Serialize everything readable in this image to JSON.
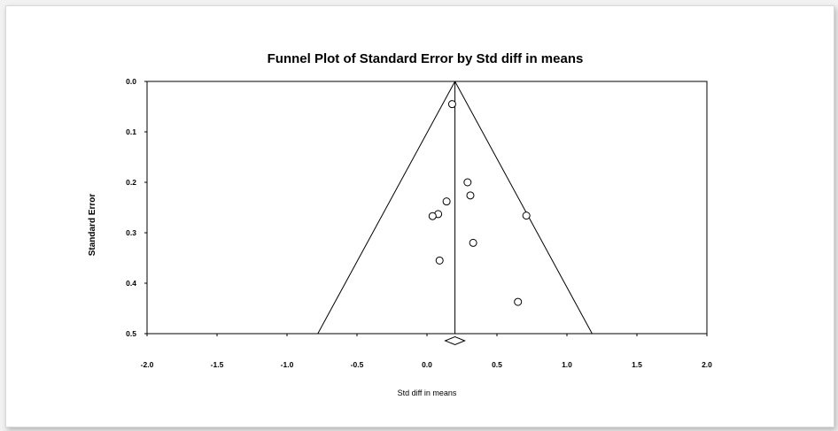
{
  "chart_data": {
    "type": "scatter",
    "title": "Funnel Plot of Standard Error by Std diff in means",
    "xlabel": "Std diff in means",
    "ylabel": "Standard Error",
    "xlim": [
      -2.0,
      2.0
    ],
    "ylim": [
      0.0,
      0.5
    ],
    "y_inverted": true,
    "x_ticks": [
      "-2.0",
      "-1.5",
      "-1.0",
      "-0.5",
      "0.0",
      "0.5",
      "1.0",
      "1.5",
      "2.0"
    ],
    "y_ticks": [
      "0.0",
      "0.1",
      "0.2",
      "0.3",
      "0.4",
      "0.5"
    ],
    "grid": false,
    "legend": "none",
    "summary_effect": 0.2,
    "funnel_limits": [
      -0.78,
      1.18
    ],
    "points": [
      {
        "x": 0.18,
        "y": 0.045
      },
      {
        "x": 0.29,
        "y": 0.2
      },
      {
        "x": 0.31,
        "y": 0.226
      },
      {
        "x": 0.14,
        "y": 0.238
      },
      {
        "x": 0.08,
        "y": 0.263
      },
      {
        "x": 0.04,
        "y": 0.267
      },
      {
        "x": 0.71,
        "y": 0.266
      },
      {
        "x": 0.33,
        "y": 0.32
      },
      {
        "x": 0.09,
        "y": 0.355
      },
      {
        "x": 0.65,
        "y": 0.437
      }
    ],
    "colors": {
      "lines": "#000000",
      "markers": "#000000",
      "marker_fill": "#ffffff"
    }
  }
}
